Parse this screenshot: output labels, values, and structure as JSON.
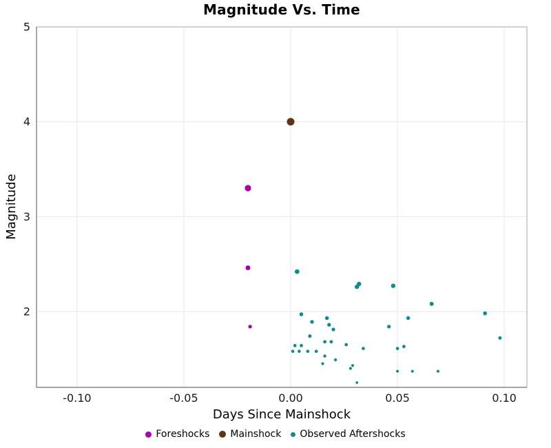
{
  "chart_data": {
    "type": "scatter",
    "title": "Magnitude Vs. Time",
    "xlabel": "Days Since Mainshock",
    "ylabel": "Magnitude",
    "xlim": [
      -0.119,
      0.1106
    ],
    "ylim": [
      1.2,
      5.0
    ],
    "grid": true,
    "legend_position": "bottom",
    "x_ticks": [
      {
        "value": -0.1,
        "label": "-0.10"
      },
      {
        "value": -0.05,
        "label": "-0.05"
      },
      {
        "value": 0.0,
        "label": "0.00"
      },
      {
        "value": 0.05,
        "label": "0.05"
      },
      {
        "value": 0.1,
        "label": "0.10"
      }
    ],
    "y_ticks": [
      {
        "value": 2,
        "label": "2"
      },
      {
        "value": 3,
        "label": "3"
      },
      {
        "value": 4,
        "label": "4"
      },
      {
        "value": 5,
        "label": "5"
      }
    ],
    "series": [
      {
        "name": "Foreshocks",
        "color": "#AA00AA",
        "points": [
          [
            -0.02,
            3.3
          ],
          [
            -0.02,
            2.46
          ],
          [
            -0.019,
            1.84
          ]
        ]
      },
      {
        "name": "Mainshock",
        "color": "#5C3512",
        "points": [
          [
            0.0,
            4.0
          ]
        ]
      },
      {
        "name": "Observed Aftershocks",
        "color": "#108C91",
        "points": [
          [
            0.003,
            2.42
          ],
          [
            0.031,
            2.26
          ],
          [
            0.032,
            2.29
          ],
          [
            0.048,
            2.27
          ],
          [
            0.066,
            2.08
          ],
          [
            0.091,
            1.98
          ],
          [
            0.005,
            1.97
          ],
          [
            0.017,
            1.93
          ],
          [
            0.055,
            1.93
          ],
          [
            0.01,
            1.89
          ],
          [
            0.018,
            1.86
          ],
          [
            0.046,
            1.84
          ],
          [
            0.02,
            1.81
          ],
          [
            0.009,
            1.74
          ],
          [
            0.098,
            1.72
          ],
          [
            0.016,
            1.68
          ],
          [
            0.019,
            1.68
          ],
          [
            0.026,
            1.65
          ],
          [
            0.002,
            1.64
          ],
          [
            0.005,
            1.64
          ],
          [
            0.053,
            1.63
          ],
          [
            0.05,
            1.61
          ],
          [
            0.034,
            1.61
          ],
          [
            0.001,
            1.58
          ],
          [
            0.004,
            1.58
          ],
          [
            0.008,
            1.58
          ],
          [
            0.012,
            1.58
          ],
          [
            0.016,
            1.53
          ],
          [
            0.021,
            1.49
          ],
          [
            0.015,
            1.45
          ],
          [
            0.029,
            1.43
          ],
          [
            0.028,
            1.4
          ],
          [
            0.05,
            1.37
          ],
          [
            0.057,
            1.37
          ],
          [
            0.069,
            1.37
          ],
          [
            0.031,
            1.25
          ]
        ]
      }
    ]
  },
  "colors": {
    "background": "#FFFFFF",
    "grid": "#E7E7E7",
    "panel_border": "#B5B5B5",
    "axis_line": "#8A8A8A",
    "tick_label": "#1A1A1A"
  }
}
